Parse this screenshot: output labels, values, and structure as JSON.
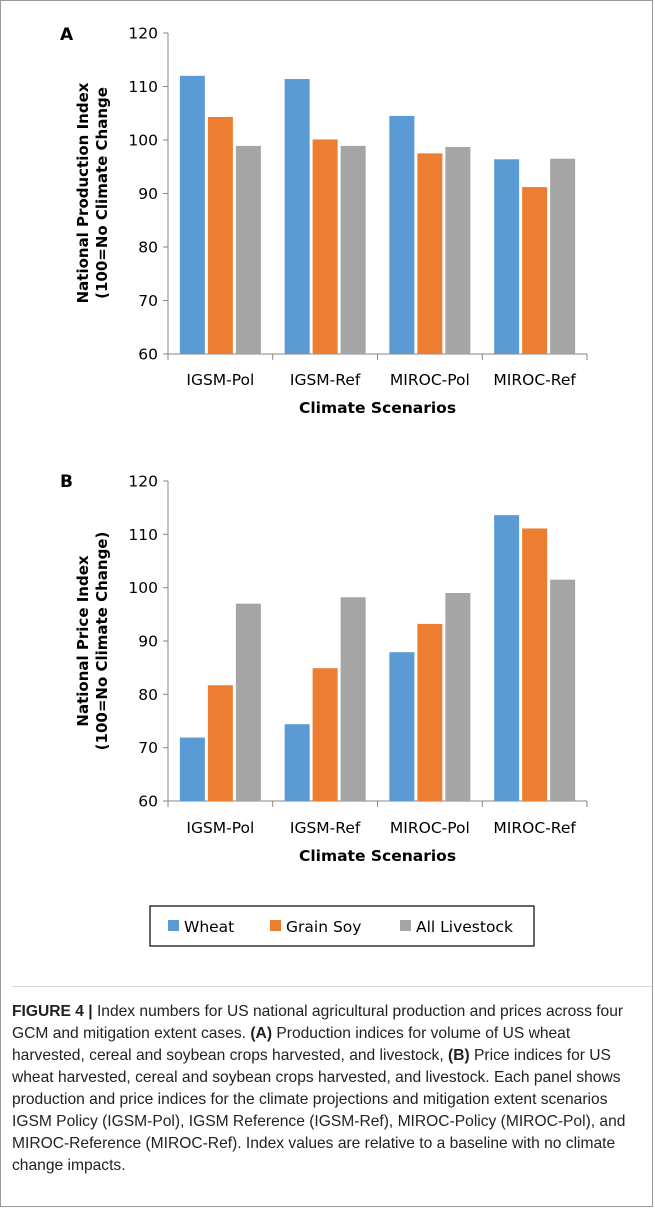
{
  "colors": {
    "Wheat": "#5b9bd5",
    "Grain Soy": "#ed7d31",
    "All Livestock": "#a5a5a5",
    "axis": "#868686"
  },
  "legend": {
    "items": [
      "Wheat",
      "Grain Soy",
      "All Livestock"
    ]
  },
  "chart_data": [
    {
      "type": "bar",
      "panel_label": "A",
      "categories": [
        "IGSM-Pol",
        "IGSM-Ref",
        "MIROC-Pol",
        "MIROC-Ref"
      ],
      "series": [
        {
          "name": "Wheat",
          "values": [
            112.0,
            111.4,
            104.5,
            96.4
          ]
        },
        {
          "name": "Grain Soy",
          "values": [
            104.3,
            100.1,
            97.5,
            91.2
          ]
        },
        {
          "name": "All Livestock",
          "values": [
            98.9,
            98.9,
            98.7,
            96.5
          ]
        }
      ],
      "xlabel": "Climate Scenarios",
      "ylabel": [
        "National Production Index",
        "(100=No Climate Change"
      ],
      "ylim": [
        60,
        120
      ],
      "yticks": [
        60,
        70,
        80,
        90,
        100,
        110,
        120
      ],
      "grid": false
    },
    {
      "type": "bar",
      "panel_label": "B",
      "categories": [
        "IGSM-Pol",
        "IGSM-Ref",
        "MIROC-Pol",
        "MIROC-Ref"
      ],
      "series": [
        {
          "name": "Wheat",
          "values": [
            71.9,
            74.4,
            87.9,
            113.6
          ]
        },
        {
          "name": "Grain Soy",
          "values": [
            81.7,
            84.9,
            93.2,
            111.1
          ]
        },
        {
          "name": "All Livestock",
          "values": [
            97.0,
            98.2,
            99.0,
            101.5
          ]
        }
      ],
      "xlabel": "Climate Scenarios",
      "ylabel": [
        "National Price Index",
        "(100=No Climate Change)"
      ],
      "ylim": [
        60,
        120
      ],
      "yticks": [
        60,
        70,
        80,
        90,
        100,
        110,
        120
      ],
      "grid": false
    }
  ],
  "caption": {
    "figure_label": "FIGURE 4 |",
    "intro": " Index numbers for US national agricultural production and prices across four GCM and mitigation extent cases. ",
    "a_label": "(A)",
    "a_text": " Production indices for volume of US wheat harvested, cereal and soybean crops harvested, and livestock, ",
    "b_label": "(B)",
    "b_text": " Price indices for US wheat harvested, cereal and soybean crops harvested, and livestock. Each panel shows production and price indices for the climate projections and mitigation extent scenarios IGSM Policy (IGSM-Pol), IGSM Reference (IGSM-Ref), MIROC-Policy (MIROC-Pol), and MIROC-Reference (MIROC-Ref). Index values are relative to a baseline with no climate change impacts."
  }
}
